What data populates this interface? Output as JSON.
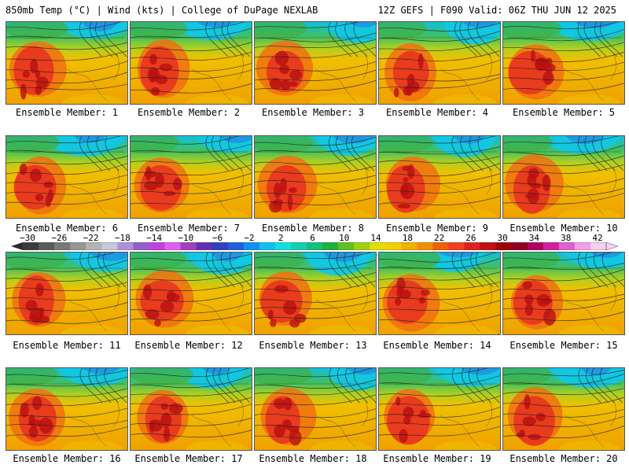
{
  "header": {
    "title": "850mb Temp (°C) | Wind (kts) | College of DuPage NEXLAB",
    "valid": "12Z GEFS | F090 Valid: 06Z THU JUN 12 2025"
  },
  "members": [
    "Ensemble Member: 1",
    "Ensemble Member: 2",
    "Ensemble Member: 3",
    "Ensemble Member: 4",
    "Ensemble Member: 5",
    "Ensemble Member: 6",
    "Ensemble Member: 7",
    "Ensemble Member: 8",
    "Ensemble Member: 9",
    "Ensemble Member: 10",
    "Ensemble Member: 11",
    "Ensemble Member: 12",
    "Ensemble Member: 13",
    "Ensemble Member: 14",
    "Ensemble Member: 15",
    "Ensemble Member: 16",
    "Ensemble Member: 17",
    "Ensemble Member: 18",
    "Ensemble Member: 19",
    "Ensemble Member: 20"
  ],
  "colorbar": {
    "labels": [
      "−30",
      "−26",
      "−22",
      "−18",
      "−14",
      "−10",
      "−6",
      "−2",
      "2",
      "6",
      "10",
      "14",
      "18",
      "22",
      "26",
      "30",
      "34",
      "38",
      "42"
    ],
    "colors": [
      "#3c3c3c",
      "#5a5a5a",
      "#787878",
      "#969696",
      "#b4b4b4",
      "#c8c8dc",
      "#b090d8",
      "#9060c8",
      "#c040e0",
      "#e060f0",
      "#a040c0",
      "#6030b0",
      "#3040c0",
      "#2060e0",
      "#1090f0",
      "#10c0f0",
      "#10e0e0",
      "#10d0b0",
      "#10c080",
      "#20b040",
      "#60c020",
      "#a0d010",
      "#e0e000",
      "#f0d000",
      "#f0b000",
      "#f09000",
      "#f06000",
      "#f04020",
      "#e02020",
      "#c01010",
      "#a00000",
      "#900020",
      "#b00060",
      "#d020a0",
      "#e060d0",
      "#f0a0e8",
      "#f8d0f0"
    ]
  }
}
